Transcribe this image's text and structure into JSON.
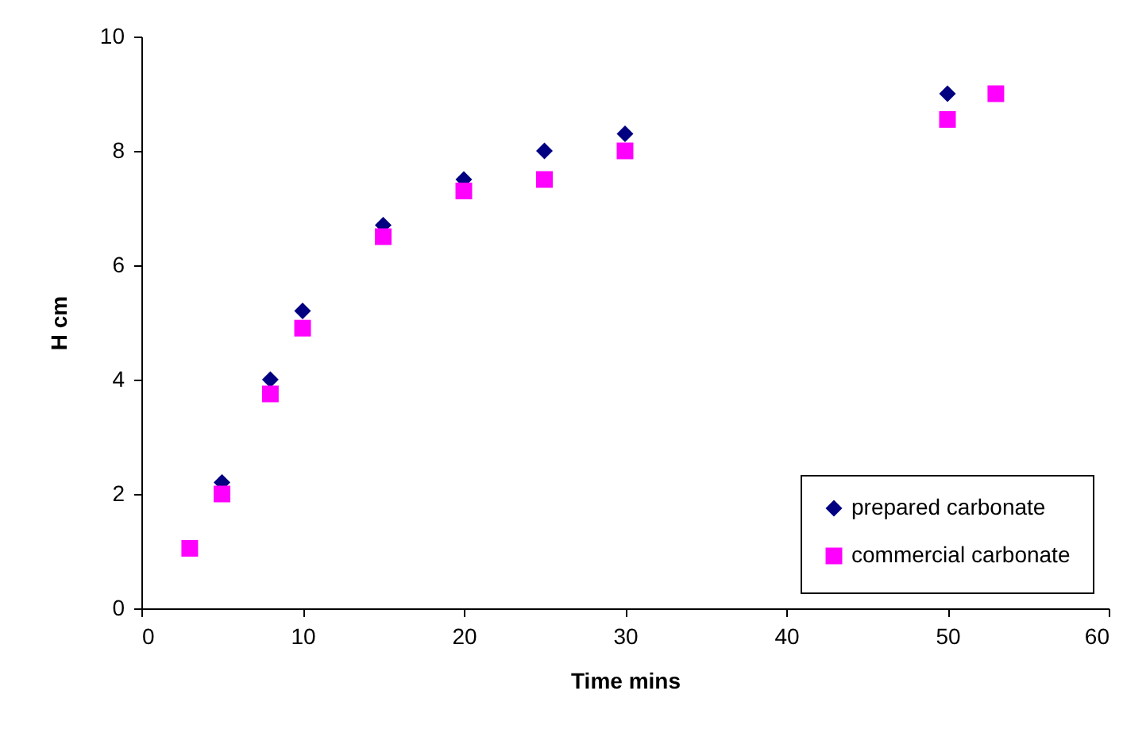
{
  "chart_data": {
    "type": "scatter",
    "xlabel": "Time mins",
    "ylabel": "H cm",
    "xlim": [
      0,
      60
    ],
    "xticks": [
      0,
      10,
      20,
      30,
      40,
      50,
      60
    ],
    "ylim": [
      0,
      10
    ],
    "yticks": [
      0,
      2,
      4,
      6,
      8,
      10
    ],
    "grid": false,
    "legend": "bottom right",
    "series": [
      {
        "name": "prepared carbonate",
        "color": "#000080",
        "marker": "diamond",
        "x": [
          5,
          8,
          10,
          15,
          20,
          25,
          30,
          50
        ],
        "values": [
          2.2,
          4.0,
          5.2,
          6.7,
          7.5,
          8.0,
          8.3,
          9.0
        ]
      },
      {
        "name": "commercial carbonate",
        "color": "#ff00ff",
        "marker": "square",
        "x": [
          3,
          5,
          8,
          10,
          15,
          20,
          25,
          30,
          50,
          53
        ],
        "values": [
          1.05,
          2.0,
          3.75,
          4.9,
          6.5,
          7.3,
          7.5,
          8.0,
          8.55,
          9.0
        ]
      }
    ]
  }
}
